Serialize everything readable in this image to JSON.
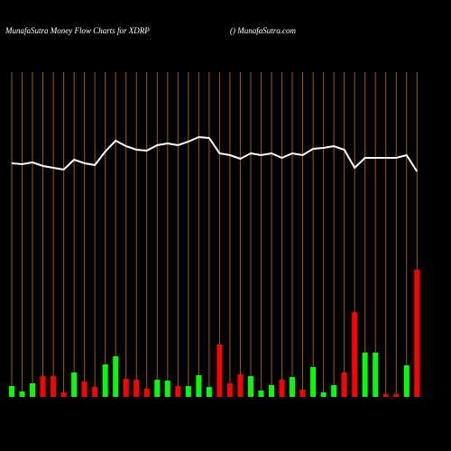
{
  "chart_data": {
    "type": "bar",
    "title": "MunafaSutra  Money Flow  Charts for XDRP",
    "subtitle": "() MunafaSutra.com",
    "categories": [
      null,
      null,
      null,
      null,
      null,
      null,
      null,
      null,
      null,
      null,
      null,
      null,
      null,
      null,
      null,
      null,
      null,
      null,
      null,
      null,
      null,
      null,
      null,
      null,
      null,
      null,
      null,
      null,
      null,
      null,
      null,
      null,
      null,
      null,
      null,
      null,
      null,
      null,
      null,
      null
    ],
    "values": [
      12,
      6,
      15,
      23,
      23,
      5,
      27,
      17,
      11,
      36,
      45,
      20,
      19,
      9,
      19,
      18,
      12,
      12,
      24,
      11,
      58,
      15,
      25,
      23,
      7,
      13,
      19,
      22,
      8,
      33,
      5,
      13,
      27,
      94,
      49,
      49,
      3,
      3,
      35,
      141
    ],
    "colors": [
      "#00ff00",
      "#00ff00",
      "#00ff00",
      "#ff0000",
      "#ff0000",
      "#ff0000",
      "#00ff00",
      "#ff0000",
      "#ff0000",
      "#00ff00",
      "#00ff00",
      "#ff0000",
      "#ff0000",
      "#ff0000",
      "#00ff00",
      "#00ff00",
      "#ff0000",
      "#00ff00",
      "#00ff00",
      "#00ff00",
      "#ff0000",
      "#ff0000",
      "#ff0000",
      "#00ff00",
      "#00ff00",
      "#00ff00",
      "#ff0000",
      "#00ff00",
      "#ff0000",
      "#00ff00",
      "#00ff00",
      "#00ff00",
      "#ff0000",
      "#ff0000",
      "#00ff00",
      "#00ff00",
      "#ff0000",
      "#ff0000",
      "#00ff00",
      "#ff0000"
    ],
    "grid_color": "#a35a00",
    "line": {
      "color": "#ffffff",
      "values": [
        259,
        258,
        260,
        256,
        254,
        252,
        263,
        259,
        257,
        272,
        284,
        278,
        274,
        273,
        279,
        281,
        279,
        283,
        288,
        287,
        270,
        268,
        264,
        270,
        268,
        270,
        265,
        270,
        268,
        275,
        276,
        278,
        274,
        254,
        265,
        265,
        265,
        265,
        268,
        250
      ]
    }
  }
}
